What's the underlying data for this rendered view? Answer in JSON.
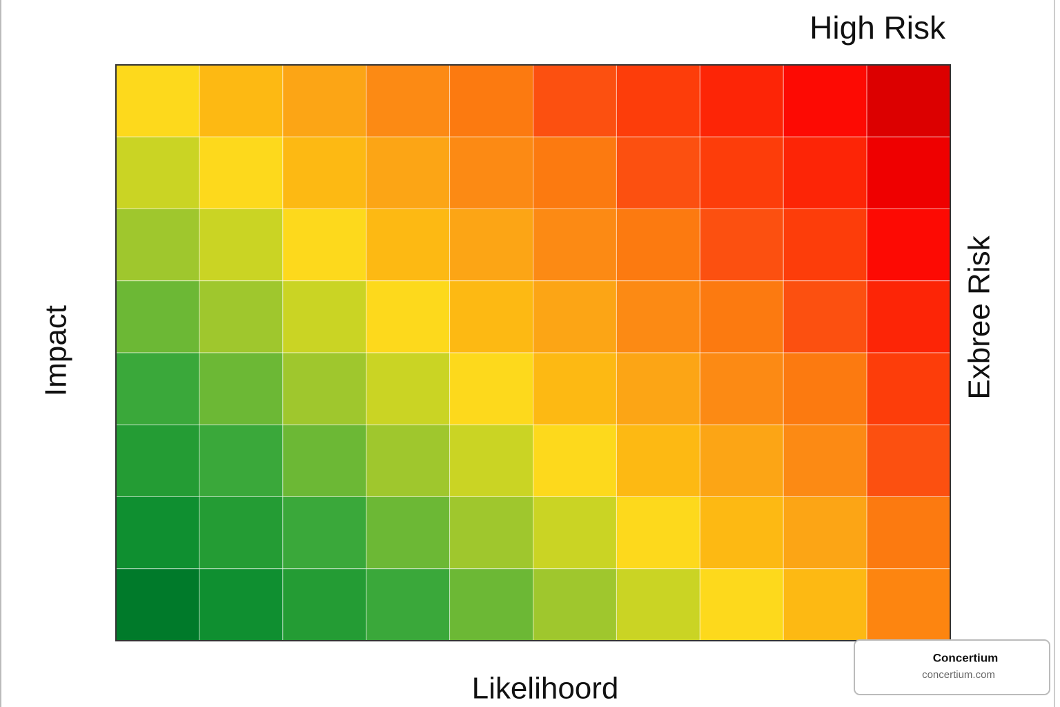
{
  "chart_data": {
    "type": "heatmap",
    "title": "High Risk",
    "right_label": "Exbree Risk",
    "y_label": "Impact",
    "x_label": "Likelihoord",
    "colors": [
      [
        "#fdd91c",
        "#fdb913",
        "#fca515",
        "#fc8a14",
        "#fc7a10",
        "#fc5010",
        "#fd3d0a",
        "#fd2506",
        "#fd0a03",
        "#dc0000"
      ],
      [
        "#cad424",
        "#fdd91c",
        "#fdb913",
        "#fca515",
        "#fc8a14",
        "#fc7a10",
        "#fc5010",
        "#fd3d0a",
        "#fd2506",
        "#ef0000"
      ],
      [
        "#9fc72d",
        "#cad424",
        "#fdd91c",
        "#fdb913",
        "#fca515",
        "#fc8a14",
        "#fc7a10",
        "#fc5010",
        "#fd3d0a",
        "#fd0a03"
      ],
      [
        "#6cb835",
        "#9fc72d",
        "#cad424",
        "#fdd91c",
        "#fdb913",
        "#fca515",
        "#fc8a14",
        "#fc7a10",
        "#fc5010",
        "#fd2506"
      ],
      [
        "#3aa83a",
        "#6cb835",
        "#9fc72d",
        "#cad424",
        "#fdd91c",
        "#fdb913",
        "#fca515",
        "#fc8a14",
        "#fc7a10",
        "#fd3d0a"
      ],
      [
        "#249c34",
        "#3aa83a",
        "#6cb835",
        "#9fc72d",
        "#cad424",
        "#fdd91c",
        "#fdb913",
        "#fca515",
        "#fc8a14",
        "#fc5010"
      ],
      [
        "#0f8f30",
        "#249c34",
        "#3aa83a",
        "#6cb835",
        "#9fc72d",
        "#cad424",
        "#fdd91c",
        "#fdb913",
        "#fca515",
        "#fc7a10"
      ],
      [
        "#007a2a",
        "#0f8f30",
        "#249c34",
        "#3aa83a",
        "#6cb835",
        "#9fc72d",
        "#cad424",
        "#fdd91c",
        "#fdb913",
        "#fd8510"
      ]
    ]
  },
  "watermark": {
    "name": "Concertium",
    "url": "concertium.com"
  }
}
